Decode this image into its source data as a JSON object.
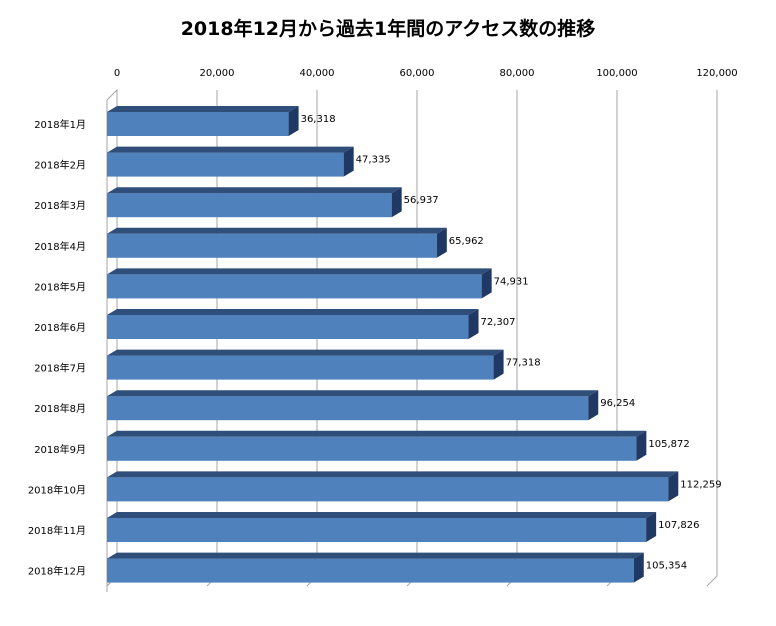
{
  "chart_data": {
    "type": "bar",
    "orientation": "horizontal",
    "title": "2018年12月から過去1年間のアクセス数の推移",
    "categories": [
      "2018年1月",
      "2018年2月",
      "2018年3月",
      "2018年4月",
      "2018年5月",
      "2018年6月",
      "2018年7月",
      "2018年8月",
      "2018年9月",
      "2018年10月",
      "2018年11月",
      "2018年12月"
    ],
    "values": [
      36318,
      47335,
      56937,
      65962,
      74931,
      72307,
      77318,
      96254,
      105872,
      112259,
      107826,
      105354
    ],
    "value_labels": [
      "36,318",
      "47,335",
      "56,937",
      "65,962",
      "74,931",
      "72,307",
      "77,318",
      "96,254",
      "105,872",
      "112,259",
      "107,826",
      "105,354"
    ],
    "xlim": [
      0,
      120000
    ],
    "x_ticks": [
      0,
      20000,
      40000,
      60000,
      80000,
      100000,
      120000
    ],
    "x_tick_labels": [
      "0",
      "20,000",
      "40,000",
      "60,000",
      "80,000",
      "100,000",
      "120,000"
    ],
    "axis_position": "top",
    "grid": true,
    "bar_color": "#4F81BD",
    "bar_top_color": "#2F4E7A",
    "bar_side_color": "#203864",
    "grid_color": "#A6A6A6"
  }
}
